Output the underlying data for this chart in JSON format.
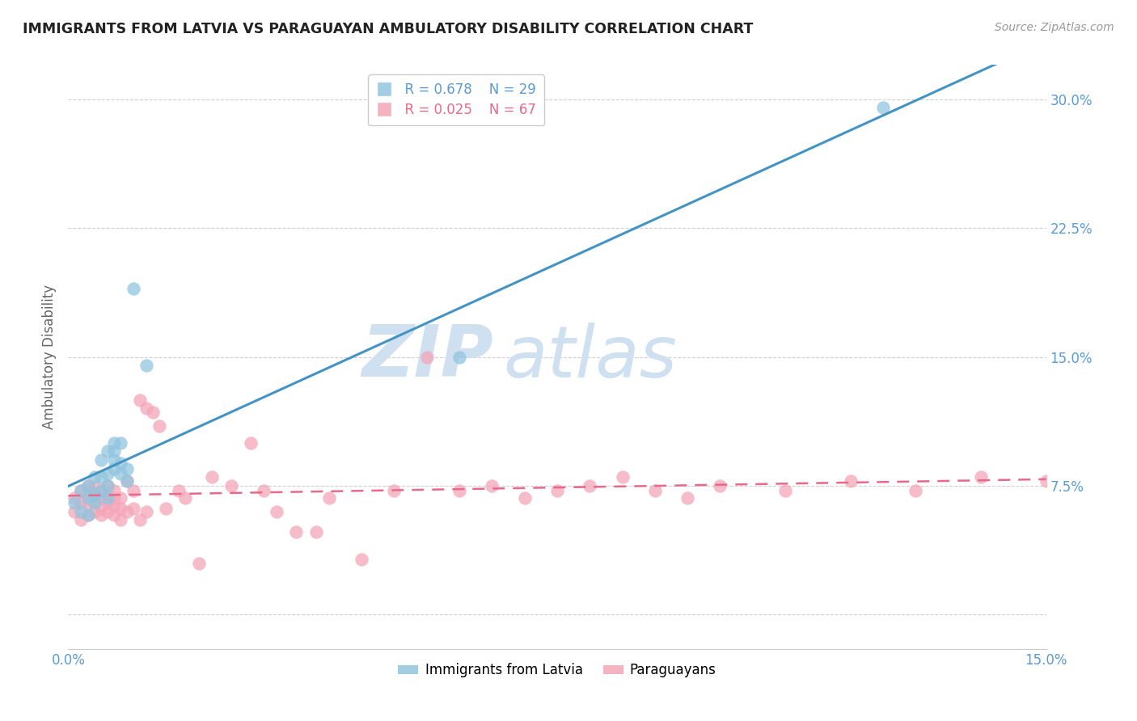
{
  "title": "IMMIGRANTS FROM LATVIA VS PARAGUAYAN AMBULATORY DISABILITY CORRELATION CHART",
  "source": "Source: ZipAtlas.com",
  "ylabel": "Ambulatory Disability",
  "xlim": [
    0.0,
    0.15
  ],
  "ylim": [
    -0.02,
    0.32
  ],
  "yticks": [
    0.0,
    0.075,
    0.15,
    0.225,
    0.3
  ],
  "ytick_labels": [
    "",
    "7.5%",
    "15.0%",
    "22.5%",
    "30.0%"
  ],
  "xticks": [
    0.0,
    0.15
  ],
  "xtick_labels": [
    "0.0%",
    "15.0%"
  ],
  "legend_blue_R": "R = 0.678",
  "legend_blue_N": "N = 29",
  "legend_pink_R": "R = 0.025",
  "legend_pink_N": "N = 67",
  "legend_label_blue": "Immigrants from Latvia",
  "legend_label_pink": "Paraguayans",
  "blue_color": "#92c5de",
  "pink_color": "#f4a6b8",
  "line_blue_color": "#4393c3",
  "line_pink_color": "#e8698a",
  "tick_color": "#5b9bd5",
  "grid_color": "#d0d0d0",
  "watermark1": "ZIP",
  "watermark2": "atlas",
  "watermark_color": "#cfe0f0",
  "blue_scatter_x": [
    0.001,
    0.002,
    0.002,
    0.003,
    0.003,
    0.003,
    0.004,
    0.004,
    0.004,
    0.005,
    0.005,
    0.005,
    0.006,
    0.006,
    0.006,
    0.006,
    0.007,
    0.007,
    0.007,
    0.007,
    0.008,
    0.008,
    0.008,
    0.009,
    0.009,
    0.01,
    0.012,
    0.06,
    0.125
  ],
  "blue_scatter_y": [
    0.065,
    0.06,
    0.072,
    0.068,
    0.075,
    0.058,
    0.07,
    0.08,
    0.065,
    0.072,
    0.08,
    0.09,
    0.075,
    0.082,
    0.068,
    0.095,
    0.085,
    0.09,
    0.095,
    0.1,
    0.082,
    0.088,
    0.1,
    0.078,
    0.085,
    0.19,
    0.145,
    0.15,
    0.295
  ],
  "pink_scatter_x": [
    0.001,
    0.001,
    0.002,
    0.002,
    0.002,
    0.003,
    0.003,
    0.003,
    0.003,
    0.004,
    0.004,
    0.004,
    0.004,
    0.005,
    0.005,
    0.005,
    0.005,
    0.006,
    0.006,
    0.006,
    0.006,
    0.007,
    0.007,
    0.007,
    0.007,
    0.008,
    0.008,
    0.008,
    0.009,
    0.009,
    0.01,
    0.01,
    0.011,
    0.011,
    0.012,
    0.012,
    0.013,
    0.014,
    0.015,
    0.017,
    0.018,
    0.02,
    0.022,
    0.025,
    0.028,
    0.03,
    0.032,
    0.035,
    0.038,
    0.04,
    0.045,
    0.05,
    0.055,
    0.06,
    0.065,
    0.07,
    0.075,
    0.08,
    0.085,
    0.09,
    0.095,
    0.1,
    0.11,
    0.12,
    0.13,
    0.14,
    0.15
  ],
  "pink_scatter_y": [
    0.06,
    0.068,
    0.055,
    0.065,
    0.072,
    0.058,
    0.065,
    0.07,
    0.075,
    0.06,
    0.065,
    0.07,
    0.075,
    0.062,
    0.068,
    0.072,
    0.058,
    0.06,
    0.065,
    0.07,
    0.075,
    0.058,
    0.063,
    0.068,
    0.072,
    0.055,
    0.062,
    0.068,
    0.06,
    0.078,
    0.062,
    0.072,
    0.055,
    0.125,
    0.06,
    0.12,
    0.118,
    0.11,
    0.062,
    0.072,
    0.068,
    0.03,
    0.08,
    0.075,
    0.1,
    0.072,
    0.06,
    0.048,
    0.048,
    0.068,
    0.032,
    0.072,
    0.15,
    0.072,
    0.075,
    0.068,
    0.072,
    0.075,
    0.08,
    0.072,
    0.068,
    0.075,
    0.072,
    0.078,
    0.072,
    0.08,
    0.078
  ]
}
